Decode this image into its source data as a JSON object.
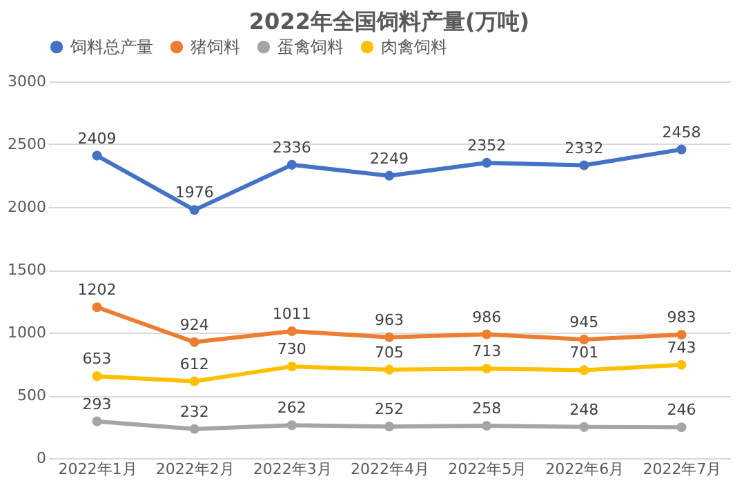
{
  "chart_data": {
    "type": "line",
    "title": "2022年全国饲料产量(万吨)",
    "categories": [
      "2022年1月",
      "2022年2月",
      "2022年3月",
      "2022年4月",
      "2022年5月",
      "2022年6月",
      "2022年7月"
    ],
    "series": [
      {
        "name": "饲料总产量",
        "color": "#4472c4",
        "values": [
          2409,
          1976,
          2336,
          2249,
          2352,
          2332,
          2458
        ]
      },
      {
        "name": "猪饲料",
        "color": "#ed7d31",
        "values": [
          1202,
          924,
          1011,
          963,
          986,
          945,
          983
        ]
      },
      {
        "name": "蛋禽饲料",
        "color": "#a5a5a5",
        "values": [
          293,
          232,
          262,
          252,
          258,
          248,
          246
        ]
      },
      {
        "name": "肉禽饲料",
        "color": "#ffc000",
        "values": [
          653,
          612,
          730,
          705,
          713,
          701,
          743
        ]
      }
    ],
    "ylim": [
      0,
      3000
    ],
    "yticks": [
      0,
      500,
      1000,
      1500,
      2000,
      2500,
      3000
    ],
    "grid": "y",
    "legend": "top",
    "marker": "circle",
    "line_style": "solid",
    "data_labels": true
  }
}
